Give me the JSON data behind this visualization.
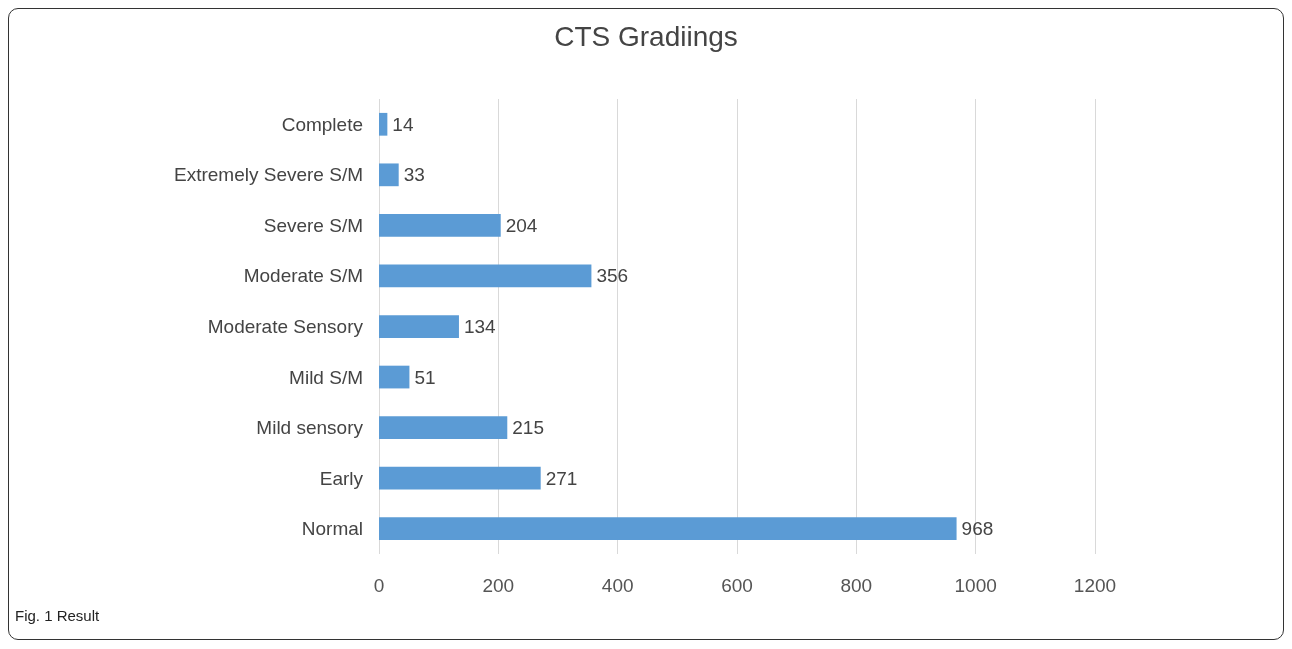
{
  "chart_data": {
    "type": "bar",
    "orientation": "horizontal",
    "title": "CTS Gradiings",
    "categories": [
      "Complete",
      "Extremely Severe S/M",
      "Severe S/M",
      "Moderate S/M",
      "Moderate Sensory",
      "Mild S/M",
      "Mild sensory",
      "Early",
      "Normal"
    ],
    "values": [
      14,
      33,
      204,
      356,
      134,
      51,
      215,
      271,
      968
    ],
    "color": "#5b9bd5",
    "xlim": [
      0,
      1200
    ],
    "xticks": [
      0,
      200,
      400,
      600,
      800,
      1000,
      1200
    ],
    "grid": "x",
    "data_labels": true,
    "annotations": [
      "Fig. 1 Result"
    ]
  }
}
